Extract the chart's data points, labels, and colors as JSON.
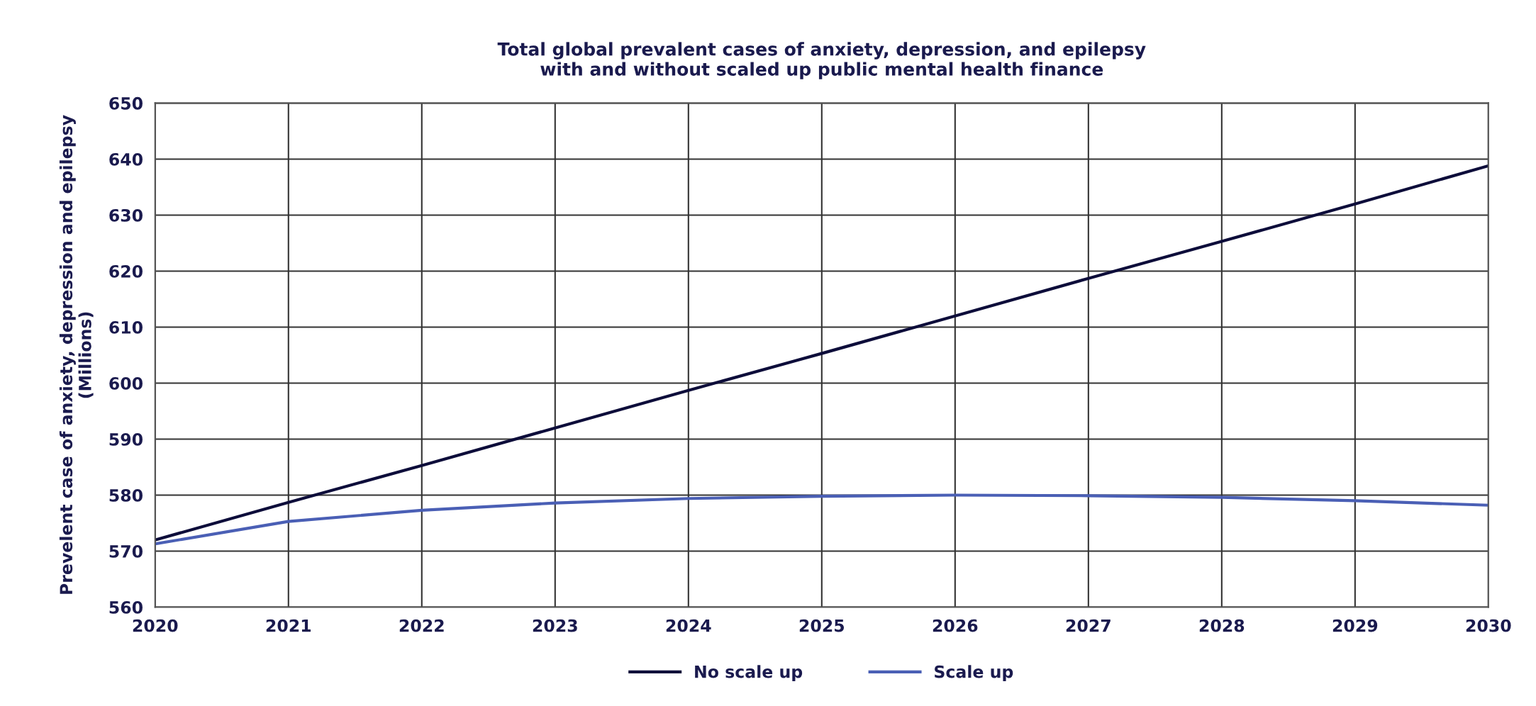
{
  "chart_data": {
    "type": "line",
    "title": "Total global prevalent cases of anxiety, depression, and epilepsy\nwith and without scaled up public mental health finance",
    "ylabel": "Prevelent case of anxiety, depression and epilepsy\n(Millions)",
    "x": [
      2020,
      2021,
      2022,
      2023,
      2024,
      2025,
      2026,
      2027,
      2028,
      2029,
      2030
    ],
    "series": [
      {
        "name": "No scale up",
        "color": "#0d0d3a",
        "values": [
          572,
          578.7,
          585.3,
          592,
          598.7,
          605.3,
          612,
          618.7,
          625.3,
          632,
          638.8
        ]
      },
      {
        "name": "Scale up",
        "color": "#4a5fb5",
        "values": [
          571.3,
          575.3,
          577.3,
          578.6,
          579.4,
          579.8,
          580,
          579.9,
          579.6,
          579,
          578.2
        ]
      }
    ],
    "xlim": [
      2020,
      2030
    ],
    "xticks": [
      2020,
      2021,
      2022,
      2023,
      2024,
      2025,
      2026,
      2027,
      2028,
      2029,
      2030
    ],
    "ylim": [
      560,
      650
    ],
    "yticks": [
      560,
      570,
      580,
      590,
      600,
      610,
      620,
      630,
      640,
      650
    ],
    "grid": true,
    "legend": "bottom",
    "marker": "none",
    "line_style": "solid"
  }
}
